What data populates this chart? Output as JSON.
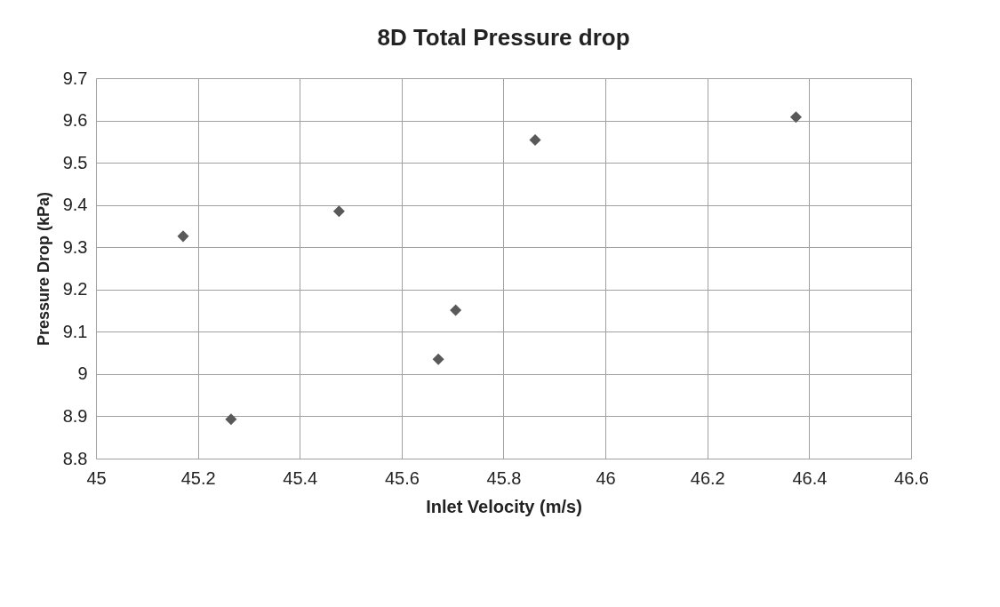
{
  "chart_data": {
    "type": "scatter",
    "title": "8D Total Pressure drop",
    "xlabel": "Inlet Velocity (m/s)",
    "ylabel": "Pressure Drop (kPa)",
    "x": [
      45.171,
      45.265,
      45.477,
      45.672,
      45.706,
      45.862,
      46.374
    ],
    "series": [
      {
        "color": "#595959",
        "values": [
          9.326,
          8.893,
          9.385,
          9.035,
          9.151,
          9.554,
          9.608
        ]
      }
    ],
    "xlim": [
      45,
      46.6
    ],
    "xticks": [
      45,
      45.2,
      45.4,
      45.6,
      45.8,
      46,
      46.2,
      46.4,
      46.6
    ],
    "ylim": [
      8.8,
      9.7
    ],
    "yticks": [
      8.8,
      8.9,
      9,
      9.1,
      9.2,
      9.3,
      9.4,
      9.5,
      9.6,
      9.7
    ],
    "grid": true,
    "marker": "diamond",
    "legend": false
  }
}
